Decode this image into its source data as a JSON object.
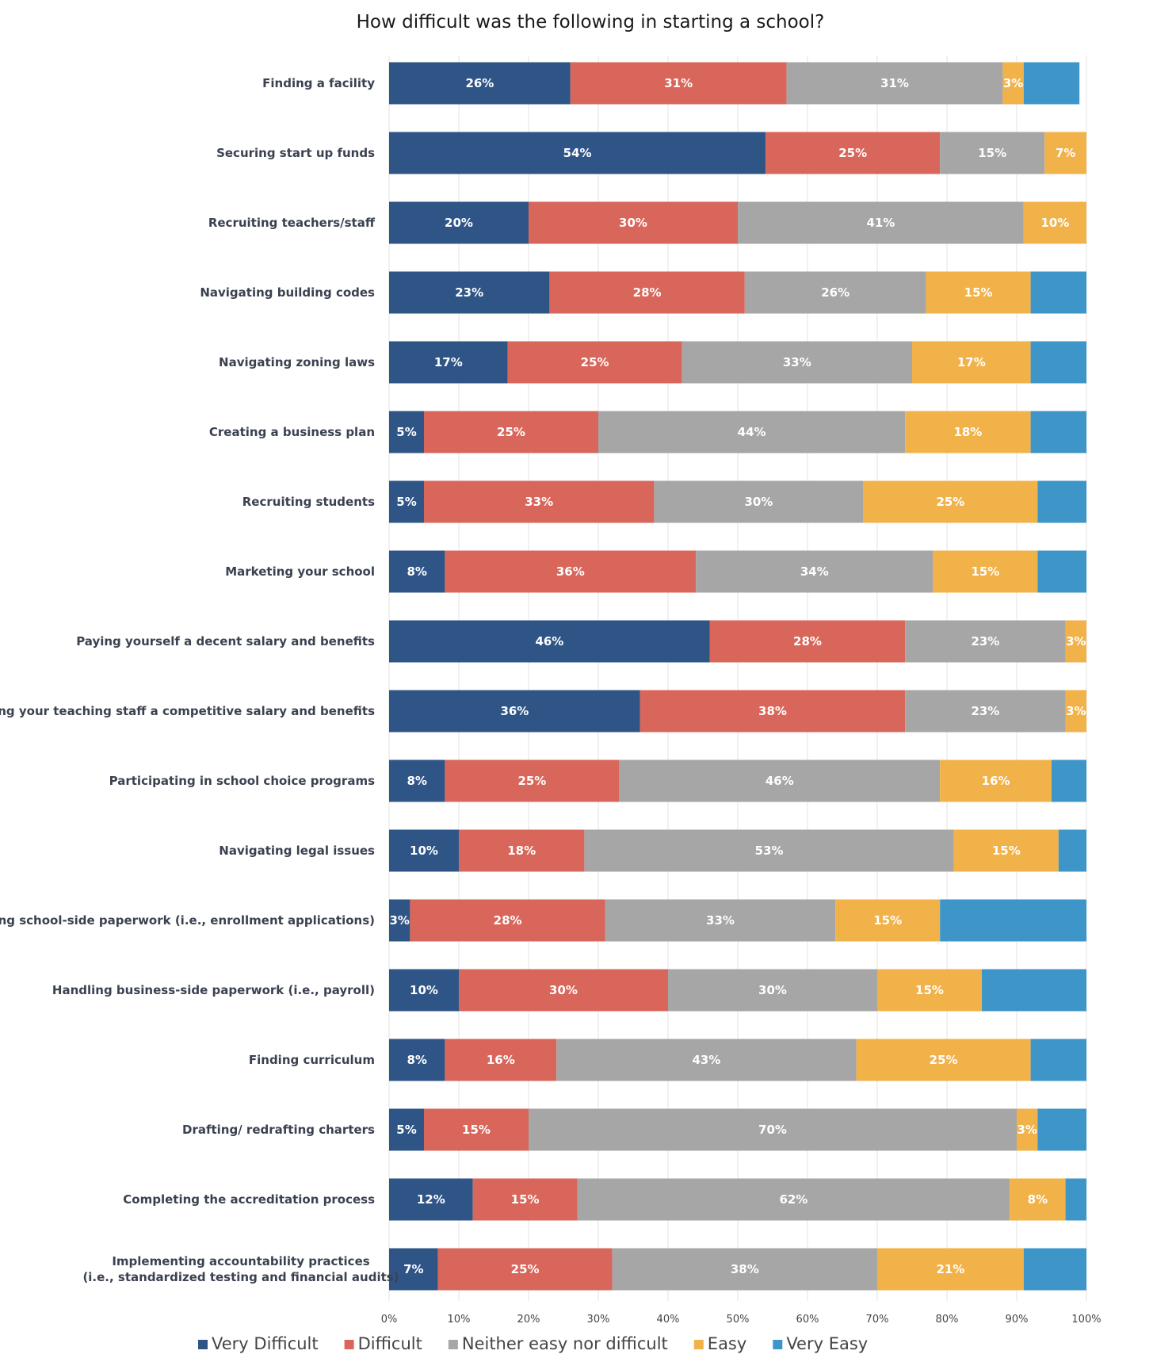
{
  "chart_data": {
    "type": "bar",
    "orientation": "horizontal",
    "stacked": true,
    "title": "How difficult was the following in starting a school?",
    "xlim": [
      0,
      100
    ],
    "x_ticks": [
      "0%",
      "10%",
      "20%",
      "30%",
      "40%",
      "50%",
      "60%",
      "70%",
      "80%",
      "90%",
      "100%"
    ],
    "grid": "vertical",
    "legend_position": "bottom",
    "categories": [
      [
        "Finding a facility"
      ],
      [
        "Securing start up funds"
      ],
      [
        "Recruiting teachers/staff"
      ],
      [
        "Navigating building codes"
      ],
      [
        "Navigating zoning laws"
      ],
      [
        "Creating a business plan"
      ],
      [
        "Recruiting students"
      ],
      [
        "Marketing your school"
      ],
      [
        "Paying yourself a decent salary and benefits"
      ],
      [
        "Paying your teaching staff a competitive salary and benefits"
      ],
      [
        "Participating in school choice programs"
      ],
      [
        "Navigating legal issues"
      ],
      [
        "Handling school-side paperwork (i.e., enrollment applications)"
      ],
      [
        "Handling business-side paperwork (i.e., payroll)"
      ],
      [
        "Finding curriculum"
      ],
      [
        "Drafting/ redrafting charters"
      ],
      [
        "Completing the accreditation process"
      ],
      [
        "Implementing accountability practices",
        "(i.e., standardized testing and financial audits)"
      ]
    ],
    "series": [
      {
        "name": "Very Difficult",
        "color": "#2f5587",
        "values": [
          26,
          54,
          20,
          23,
          17,
          5,
          5,
          8,
          46,
          36,
          8,
          10,
          3,
          10,
          8,
          5,
          12,
          7
        ],
        "labels": [
          "26%",
          "54%",
          "20%",
          "23%",
          "17%",
          "5%",
          "5%",
          "8%",
          "46%",
          "36%",
          "8%",
          "10%",
          "3%",
          "10%",
          "8%",
          "5%",
          "12%",
          "7%"
        ]
      },
      {
        "name": "Difficult",
        "color": "#d9665a",
        "values": [
          31,
          25,
          30,
          28,
          25,
          25,
          33,
          36,
          28,
          38,
          25,
          18,
          28,
          30,
          16,
          15,
          15,
          25
        ],
        "labels": [
          "31%",
          "25%",
          "30%",
          "28%",
          "25%",
          "25%",
          "33%",
          "36%",
          "28%",
          "38%",
          "25%",
          "18%",
          "28%",
          "30%",
          "16%",
          "15%",
          "15%",
          "25%"
        ]
      },
      {
        "name": "Neither easy nor difficult",
        "color": "#a6a6a6",
        "values": [
          31,
          15,
          41,
          26,
          33,
          44,
          30,
          34,
          23,
          23,
          46,
          53,
          33,
          30,
          43,
          70,
          62,
          38
        ],
        "labels": [
          "31%",
          "15%",
          "41%",
          "26%",
          "33%",
          "44%",
          "30%",
          "34%",
          "23%",
          "23%",
          "46%",
          "53%",
          "33%",
          "30%",
          "43%",
          "70%",
          "62%",
          "38%"
        ]
      },
      {
        "name": "Easy",
        "color": "#f2b24a",
        "values": [
          3,
          7,
          10,
          15,
          17,
          18,
          25,
          15,
          3,
          3,
          16,
          15,
          15,
          15,
          25,
          3,
          8,
          21
        ],
        "labels": [
          "3%",
          "7%",
          "10%",
          "15%",
          "17%",
          "18%",
          "25%",
          "15%",
          "3%",
          "3%",
          "16%",
          "15%",
          "15%",
          "15%",
          "25%",
          "3%",
          "8%",
          "21%"
        ]
      },
      {
        "name": "Very Easy",
        "color": "#3e95c7",
        "values": [
          8,
          0,
          0,
          8,
          8,
          8,
          8,
          7,
          0,
          0,
          5,
          5,
          21,
          16,
          8,
          7,
          3,
          10
        ],
        "labels": [
          "",
          "",
          "",
          "",
          "",
          "",
          "",
          "",
          "",
          "",
          "",
          "",
          "",
          "",
          "",
          "",
          "",
          ""
        ]
      }
    ]
  }
}
